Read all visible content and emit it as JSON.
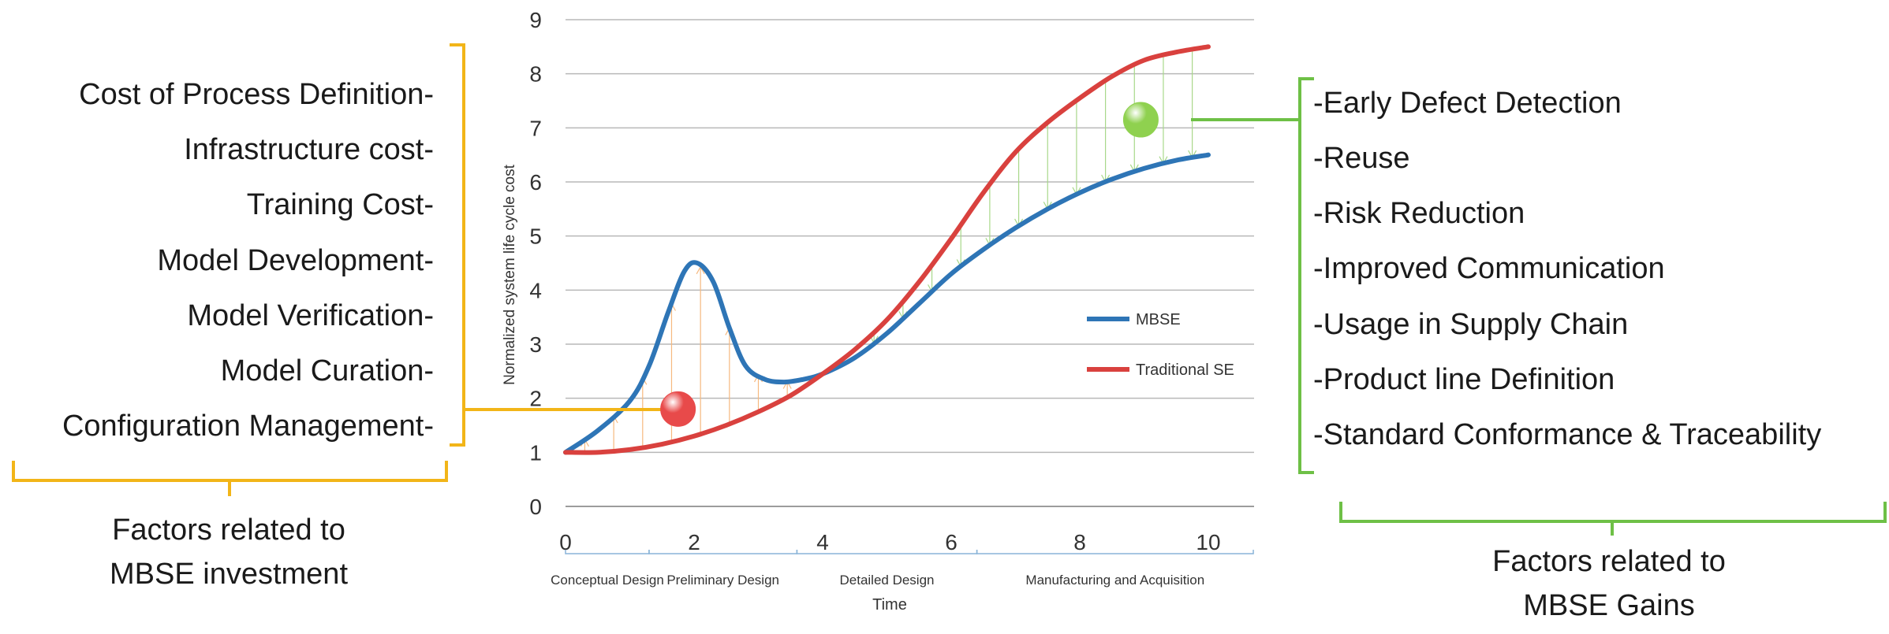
{
  "chart_data": {
    "type": "line",
    "title": "",
    "xlabel": "Time",
    "ylabel": "Normalized system life cycle cost",
    "xlim": [
      0,
      10.7
    ],
    "ylim": [
      0,
      9
    ],
    "x_ticks": [
      0,
      2,
      4,
      6,
      8,
      10
    ],
    "y_ticks": [
      0,
      1,
      2,
      3,
      4,
      5,
      6,
      7,
      8,
      9
    ],
    "grid": "horizontal",
    "legend_position": "right",
    "series": [
      {
        "name": "MBSE",
        "color": "#2e75b6",
        "x": [
          0,
          0.5,
          1.0,
          1.3,
          1.6,
          1.85,
          2.05,
          2.3,
          2.55,
          2.8,
          3.1,
          3.4,
          3.7,
          4.0,
          4.5,
          5.0,
          5.5,
          6.0,
          6.5,
          7.0,
          7.5,
          8.0,
          8.5,
          9.0,
          9.5,
          10.0
        ],
        "y": [
          1.0,
          1.4,
          1.95,
          2.6,
          3.6,
          4.35,
          4.5,
          4.15,
          3.3,
          2.6,
          2.35,
          2.3,
          2.35,
          2.45,
          2.75,
          3.2,
          3.75,
          4.3,
          4.75,
          5.15,
          5.5,
          5.8,
          6.05,
          6.25,
          6.4,
          6.5
        ]
      },
      {
        "name": "Traditional SE",
        "color": "#d9413e",
        "x": [
          0,
          0.5,
          1.0,
          1.5,
          2.0,
          2.5,
          3.0,
          3.5,
          4.0,
          4.5,
          5.0,
          5.5,
          6.0,
          6.5,
          7.0,
          7.5,
          8.0,
          8.5,
          9.0,
          9.5,
          10.0
        ],
        "y": [
          1.0,
          1.0,
          1.05,
          1.15,
          1.3,
          1.5,
          1.75,
          2.05,
          2.45,
          2.9,
          3.45,
          4.15,
          4.95,
          5.8,
          6.55,
          7.1,
          7.55,
          7.95,
          8.25,
          8.4,
          8.5
        ]
      }
    ],
    "phases": [
      {
        "label": "Conceptual Design",
        "start": 0,
        "end": 1.3
      },
      {
        "label": "Preliminary Design",
        "start": 1.3,
        "end": 3.6
      },
      {
        "label": "Detailed Design",
        "start": 3.6,
        "end": 6.4
      },
      {
        "label": "Manufacturing and Acquisition",
        "start": 6.4,
        "end": 10.7
      }
    ],
    "markers": [
      {
        "name": "investment-marker",
        "x": 1.75,
        "y": 1.8,
        "color": "#e84a4a"
      },
      {
        "name": "gains-marker",
        "x": 8.95,
        "y": 7.15,
        "color": "#8fd14f"
      }
    ]
  },
  "left_factors": {
    "items": [
      "Cost of Process Definition-",
      "Infrastructure cost-",
      "Training Cost-",
      "Model Development-",
      "Model Verification-",
      "Model Curation-",
      "Configuration Management-"
    ],
    "caption_line1": "Factors related to",
    "caption_line2": "MBSE investment",
    "bracket_color": "#f2b518"
  },
  "right_factors": {
    "items": [
      "-Early Defect Detection",
      "-Reuse",
      "-Risk Reduction",
      "-Improved Communication",
      "-Usage in Supply Chain",
      "-Product line Definition",
      "-Standard Conformance & Traceability"
    ],
    "caption_line1": "Factors related to",
    "caption_line2": "MBSE Gains",
    "bracket_color": "#6ec046"
  }
}
